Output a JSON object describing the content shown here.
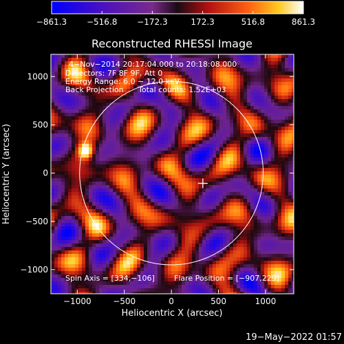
{
  "chart_data": {
    "type": "heatmap",
    "title": "Reconstructed RHESSI Image",
    "xlabel": "Heliocentric X (arcsec)",
    "ylabel": "Heliocentric Y (arcsec)",
    "xlim": [
      -1280,
      1300
    ],
    "ylim": [
      -1250,
      1230
    ],
    "xticks": [
      -1000,
      -500,
      0,
      500,
      1000
    ],
    "xtick_labels": [
      "−1000",
      "−500",
      "0",
      "500",
      "1000"
    ],
    "yticks": [
      -1000,
      -500,
      0,
      500,
      1000
    ],
    "ytick_labels": [
      "−1000",
      "−500",
      "0",
      "500",
      "1000"
    ],
    "colorbar": {
      "range": [
        -861.3,
        861.3
      ],
      "tick_values": [
        -861.3,
        -516.8,
        -172.3,
        172.3,
        516.8,
        861.3
      ],
      "tick_labels": [
        "−861.3",
        "−516.8",
        "−172.3",
        "172.3",
        "516.8",
        "861.3"
      ]
    },
    "annotations": {
      "time_range": "4−Nov−2014 20:17:04.000 to 20:18:08.000",
      "detectors": "Detectors: 7F 8F 9F, Att 0",
      "energy": "Energy Range: 6.0 − 12.0 keV",
      "method": "Back Projection",
      "counts": "Total counts: 1.52E+03",
      "spin_axis": "Spin Axis = [334,−106]",
      "flare_position": "Flare Position = [−907,229]"
    },
    "solar_limb": {
      "center": [
        0,
        0
      ],
      "radius": 975
    },
    "spin_axis_marker": [
      334,
      -106
    ],
    "bright_source": [
      -907,
      229
    ],
    "footer_date": "19−May−2022 01:57"
  }
}
